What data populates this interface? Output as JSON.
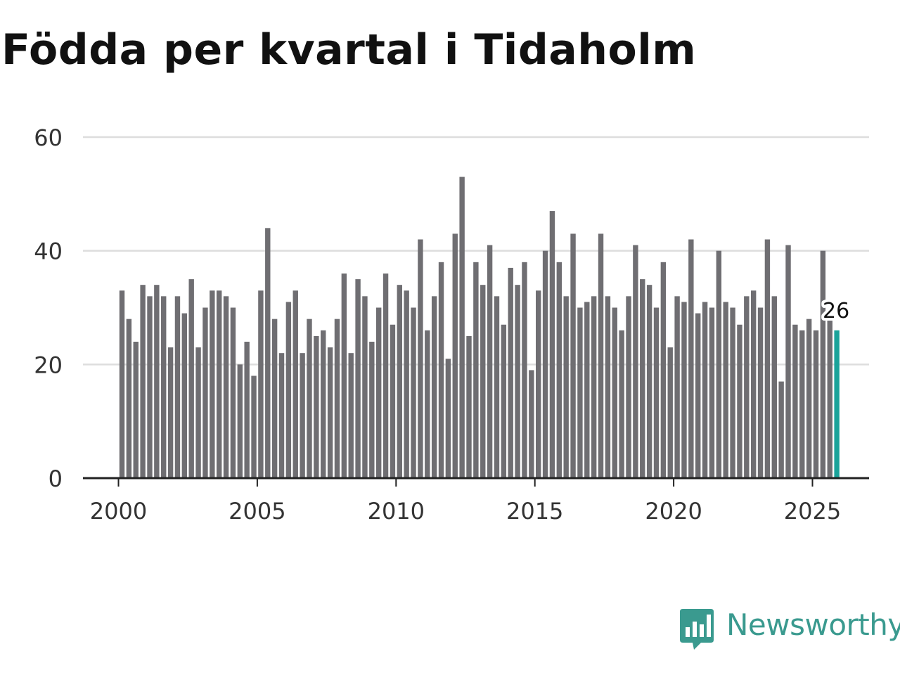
{
  "title": "Födda per kvartal i Tidaholm",
  "brand": {
    "name": "Newsworthy",
    "logo_icon": "bar-chart-speech-bubble-icon"
  },
  "colors": {
    "bar": "#6f6e72",
    "highlight": "#1aa39a",
    "grid": "#dddddd",
    "axis": "#222222",
    "brand": "#3a9a8f"
  },
  "chart_data": {
    "type": "bar",
    "title": "Födda per kvartal i Tidaholm",
    "xlabel": "",
    "ylabel": "",
    "ylim": [
      0,
      60
    ],
    "y_ticks": [
      0,
      20,
      40,
      60
    ],
    "x_ticks": [
      "2000",
      "2005",
      "2010",
      "2015",
      "2020",
      "2025"
    ],
    "grid": true,
    "start": "2000 Q1",
    "frequency": "quarterly",
    "values": [
      33,
      28,
      24,
      34,
      32,
      34,
      32,
      23,
      32,
      29,
      35,
      23,
      30,
      33,
      33,
      32,
      30,
      20,
      24,
      18,
      33,
      44,
      28,
      22,
      31,
      33,
      22,
      28,
      25,
      26,
      23,
      28,
      36,
      22,
      35,
      32,
      24,
      30,
      36,
      27,
      34,
      33,
      30,
      42,
      26,
      32,
      38,
      21,
      43,
      53,
      25,
      38,
      34,
      41,
      32,
      27,
      37,
      34,
      38,
      19,
      33,
      40,
      47,
      38,
      32,
      43,
      30,
      31,
      32,
      43,
      32,
      30,
      26,
      32,
      41,
      35,
      34,
      30,
      38,
      23,
      32,
      31,
      42,
      29,
      31,
      30,
      40,
      31,
      30,
      27,
      32,
      33,
      30,
      42,
      32,
      17,
      41,
      27,
      26,
      28,
      26,
      40,
      28,
      26
    ],
    "highlight": {
      "index": 103,
      "label": "26"
    }
  }
}
